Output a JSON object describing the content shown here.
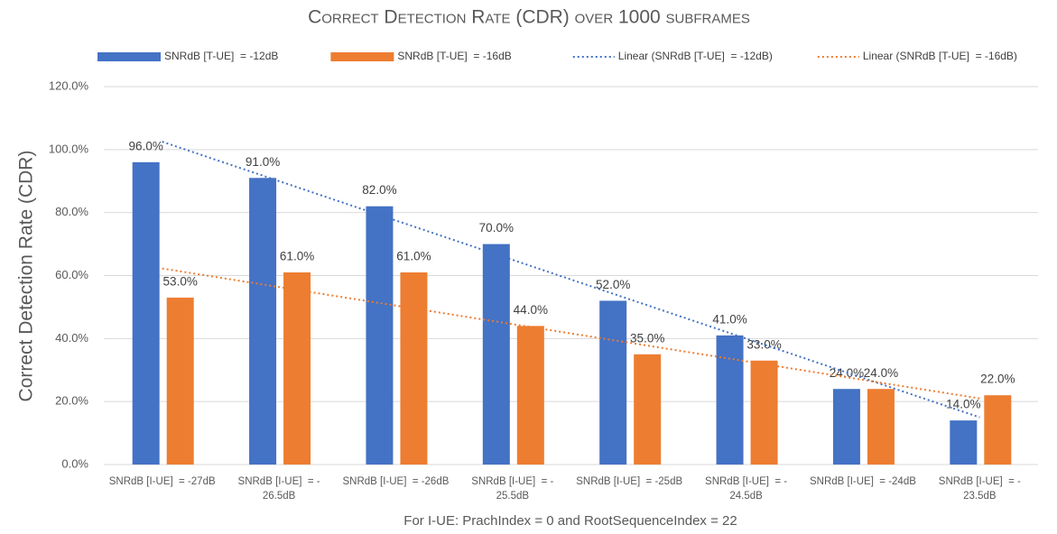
{
  "chart_data": {
    "type": "bar",
    "title": "Correct Detection Rate (CDR) over 1000 subframes",
    "x_label": "For I-UE: PrachIndex = 0 and RootSequenceIndex = 22",
    "y_label": "Correct Detection Rate (CDR)",
    "categories": [
      "SNRdB [I-UE]  = -27dB",
      "SNRdB [I-UE]  = -26.5dB",
      "SNRdB [I-UE]  = -26dB",
      "SNRdB [I-UE]  = -25.5dB",
      "SNRdB [I-UE]  = -25dB",
      "SNRdB [I-UE]  = -24.5dB",
      "SNRdB [I-UE]  = -24dB",
      "SNRdB [I-UE]  = -23.5dB"
    ],
    "series": [
      {
        "name": "SNRdB [T-UE]  = -12dB",
        "color": "#4472c4",
        "values": [
          96,
          91,
          82,
          70,
          52,
          41,
          24,
          14
        ],
        "value_labels": [
          "96.0%",
          "91.0%",
          "82.0%",
          "70.0%",
          "52.0%",
          "41.0%",
          "24.0%",
          "14.0%"
        ]
      },
      {
        "name": "SNRdB [T-UE]  = -16dB",
        "color": "#ed7d31",
        "values": [
          53,
          61,
          61,
          44,
          35,
          33,
          24,
          22
        ],
        "value_labels": [
          "53.0%",
          "61.0%",
          "61.0%",
          "44.0%",
          "35.0%",
          "33.0%",
          "24.0%",
          "22.0%"
        ]
      }
    ],
    "trendlines": [
      {
        "name": "Linear (SNRdB [T-UE]  = -12dB)",
        "series": 0,
        "color": "#4472c4"
      },
      {
        "name": "Linear (SNRdB [T-UE]  = -16dB)",
        "series": 1,
        "color": "#ed7d31"
      }
    ],
    "ylim": [
      0,
      120
    ],
    "yticks": [
      {
        "value": 0,
        "label": "0.0%"
      },
      {
        "value": 20,
        "label": "20.0%"
      },
      {
        "value": 40,
        "label": "40.0%"
      },
      {
        "value": 60,
        "label": "60.0%"
      },
      {
        "value": 80,
        "label": "80.0%"
      },
      {
        "value": 100,
        "label": "100.0%"
      },
      {
        "value": 120,
        "label": "120.0%"
      }
    ],
    "grid": true,
    "legend": "top"
  }
}
